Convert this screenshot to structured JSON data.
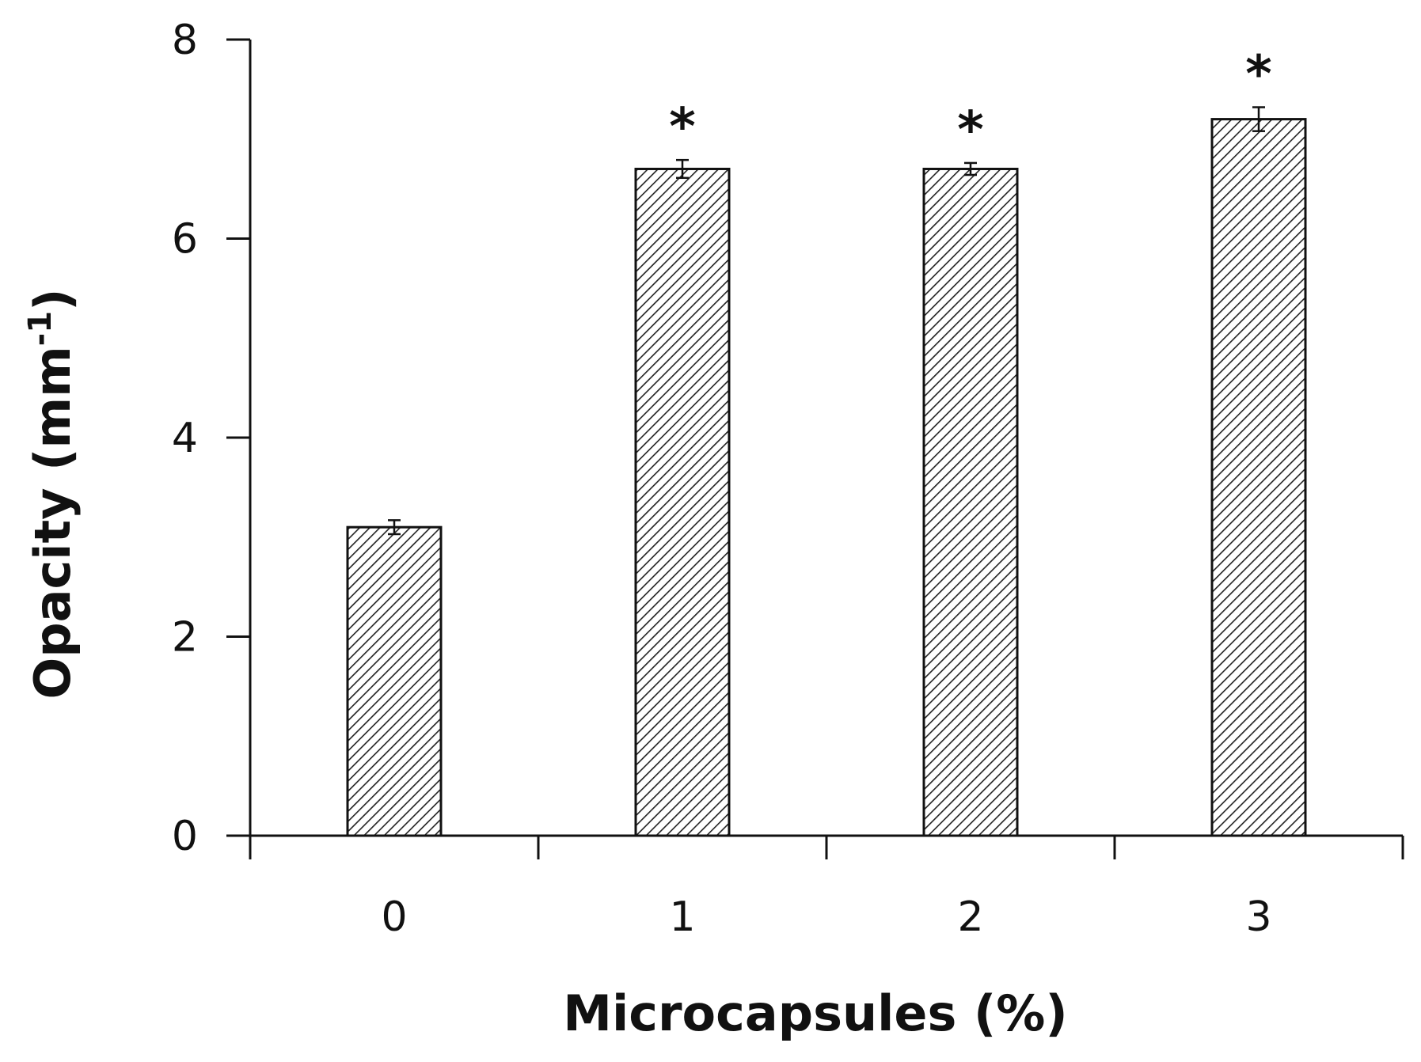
{
  "chart_data": {
    "type": "bar",
    "title": "",
    "xlabel": "Microcapsules (%)",
    "ylabel": "Opacity (mm",
    "ylabel_superscript": "-1",
    "ylabel_close": ")",
    "categories": [
      "0",
      "1",
      "2",
      "3"
    ],
    "values": [
      3.1,
      6.7,
      6.7,
      7.2
    ],
    "error": [
      0.07,
      0.09,
      0.06,
      0.12
    ],
    "annotations": [
      "",
      "*",
      "*",
      "*"
    ],
    "ylim": [
      0,
      8
    ],
    "yticks": [
      "0",
      "2",
      "4",
      "6",
      "8"
    ],
    "grid": false,
    "legend": "none",
    "bar_fill": "hatched",
    "colors": {
      "axis": "#111111",
      "bar_outline": "#111111",
      "hatch": "#222222",
      "background": "#ffffff"
    }
  }
}
